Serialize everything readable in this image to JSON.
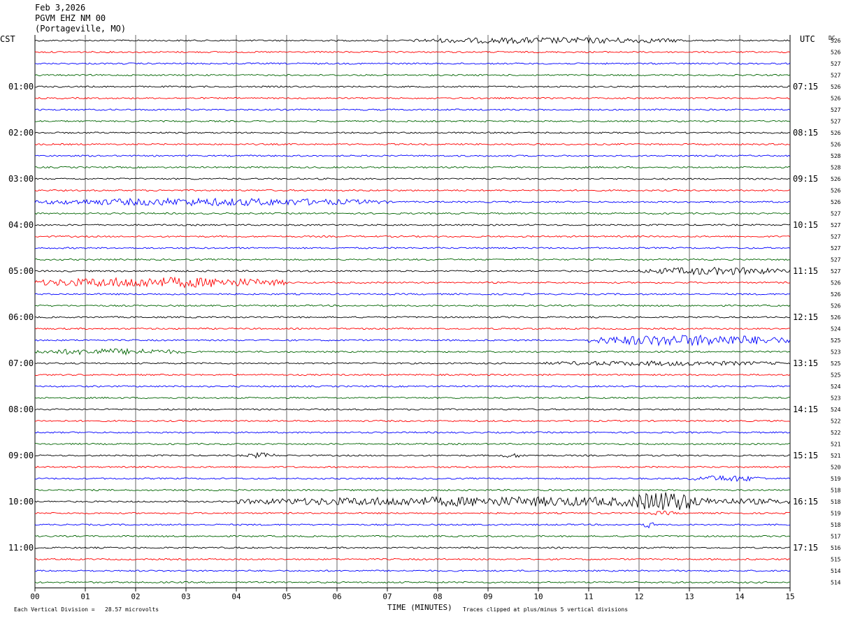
{
  "header": {
    "date": "Feb 3,2026",
    "station": "PGVM EHZ NM 00",
    "location": "(Portageville, MO)"
  },
  "left_timezone": "CST",
  "right_timezone": "UTC",
  "dc_label": "DC",
  "footer": {
    "vertical_division": "Each Vertical Division =   28.57 microvolts",
    "time_label": "TIME (MINUTES)",
    "clip_note": "Traces clipped at plus/minus 5 vertical divisions"
  },
  "colors": {
    "trace_cycle": [
      "#000000",
      "#ff0000",
      "#0000ff",
      "#006400"
    ],
    "grid": "#000000",
    "background": "#ffffff"
  },
  "chart_data": {
    "type": "line",
    "title": "PGVM EHZ NM 00",
    "xlabel": "TIME (MINUTES)",
    "xlim": [
      0,
      15
    ],
    "x_ticks": [
      "00",
      "01",
      "02",
      "03",
      "04",
      "05",
      "06",
      "07",
      "08",
      "09",
      "10",
      "11",
      "12",
      "13",
      "14",
      "15"
    ],
    "minutes_per_trace": 15,
    "trace_count": 48,
    "left_hour_labels": [
      "01:00",
      "02:00",
      "03:00",
      "04:00",
      "05:00",
      "06:00",
      "07:00",
      "08:00",
      "09:00",
      "10:00",
      "11:00"
    ],
    "right_hour_labels": [
      "07:15",
      "08:15",
      "09:15",
      "10:15",
      "11:15",
      "12:15",
      "13:15",
      "14:15",
      "15:15",
      "16:15",
      "17:15"
    ],
    "dc_offsets": [
      526,
      526,
      527,
      527,
      526,
      526,
      527,
      527,
      526,
      526,
      528,
      528,
      526,
      526,
      526,
      527,
      527,
      527,
      527,
      527,
      527,
      526,
      526,
      526,
      526,
      524,
      525,
      523,
      525,
      525,
      524,
      523,
      524,
      522,
      522,
      521,
      521,
      520,
      519,
      518,
      518,
      519,
      518,
      517,
      516,
      515,
      514,
      514
    ],
    "events": [
      {
        "trace": 0,
        "from_min": 7.5,
        "to_min": 13.0,
        "amp": 4.5
      },
      {
        "trace": 14,
        "from_min": 0.0,
        "to_min": 7.0,
        "amp": 5.5
      },
      {
        "trace": 20,
        "from_min": 12.0,
        "to_min": 15.0,
        "amp": 5.5
      },
      {
        "trace": 21,
        "from_min": 0.0,
        "to_min": 5.0,
        "amp": 7.5
      },
      {
        "trace": 26,
        "from_min": 11.0,
        "to_min": 15.0,
        "amp": 8.0
      },
      {
        "trace": 27,
        "from_min": 0.0,
        "to_min": 3.0,
        "amp": 4.5
      },
      {
        "trace": 28,
        "from_min": 10.0,
        "to_min": 15.0,
        "amp": 3.5
      },
      {
        "trace": 36,
        "from_min": 4.2,
        "to_min": 4.8,
        "amp": 4.0
      },
      {
        "trace": 36,
        "from_min": 9.2,
        "to_min": 9.8,
        "amp": 3.0
      },
      {
        "trace": 38,
        "from_min": 13.0,
        "to_min": 14.5,
        "amp": 4.5
      },
      {
        "trace": 40,
        "from_min": 4.0,
        "to_min": 15.0,
        "amp": 7.0
      },
      {
        "trace": 40,
        "from_min": 11.8,
        "to_min": 13.2,
        "amp": 15.0
      },
      {
        "trace": 41,
        "from_min": 12.2,
        "to_min": 12.8,
        "amp": 3.0
      },
      {
        "trace": 42,
        "from_min": 12.1,
        "to_min": 12.3,
        "amp": 6.0
      }
    ]
  }
}
